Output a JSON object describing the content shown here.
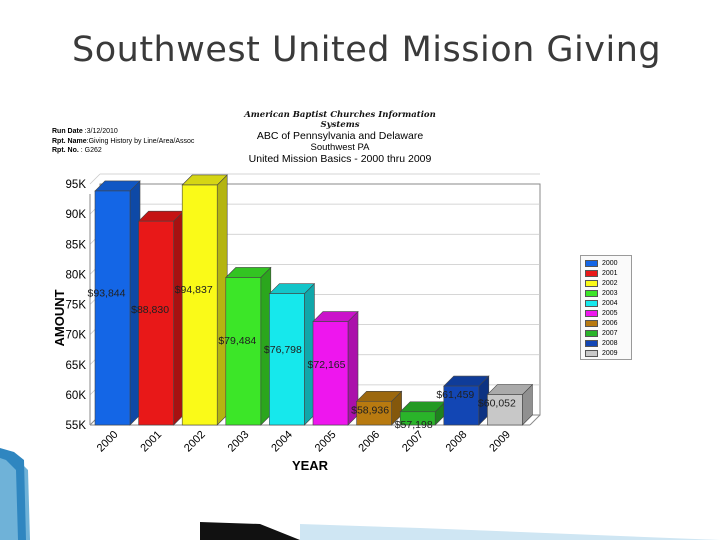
{
  "slide": {
    "title": "Southwest United Mission Giving"
  },
  "report": {
    "run_date_label": "Run Date",
    "run_date": "3/12/2010",
    "rpt_name_label": "Rpt. Name",
    "rpt_name": "Giving History by Line/Area/Assoc",
    "rpt_no_label": "Rpt. No.",
    "rpt_no": "G262",
    "org": "American Baptist Churches Information Systems",
    "region": "ABC of Pennsylvania and Delaware",
    "area": "Southwest PA",
    "subtitle": "United Mission Basics - 2000 thru 2009"
  },
  "chart_data": {
    "type": "bar",
    "categories": [
      "2000",
      "2001",
      "2002",
      "2003",
      "2004",
      "2005",
      "2006",
      "2007",
      "2008",
      "2009"
    ],
    "values": [
      93844,
      88830,
      94837,
      79484,
      76798,
      72165,
      58936,
      57198,
      61459,
      60052
    ],
    "data_labels": [
      "$93,844",
      "$88,830",
      "$94,837",
      "$79,484",
      "$76,798",
      "$72,165",
      "$58,936",
      "$57,198",
      "$61,459",
      "$60,052"
    ],
    "colors": [
      "#1466e6",
      "#e81818",
      "#fafa18",
      "#3ce628",
      "#16e8ec",
      "#ee16ee",
      "#b87a10",
      "#2ab42a",
      "#1246b4",
      "#c8c8c8"
    ],
    "xlabel": "YEAR",
    "ylabel": "AMOUNT",
    "ylim": [
      55000,
      95000
    ],
    "yticks": [
      55000,
      60000,
      65000,
      70000,
      75000,
      80000,
      85000,
      90000,
      95000
    ],
    "ytick_labels": [
      "55K",
      "60K",
      "65K",
      "70K",
      "75K",
      "80K",
      "85K",
      "90K",
      "95K"
    ],
    "grid": true,
    "legend": {
      "placement": "right",
      "entries": [
        "2000",
        "2001",
        "2002",
        "2003",
        "2004",
        "2005",
        "2006",
        "2007",
        "2008",
        "2009"
      ]
    }
  }
}
